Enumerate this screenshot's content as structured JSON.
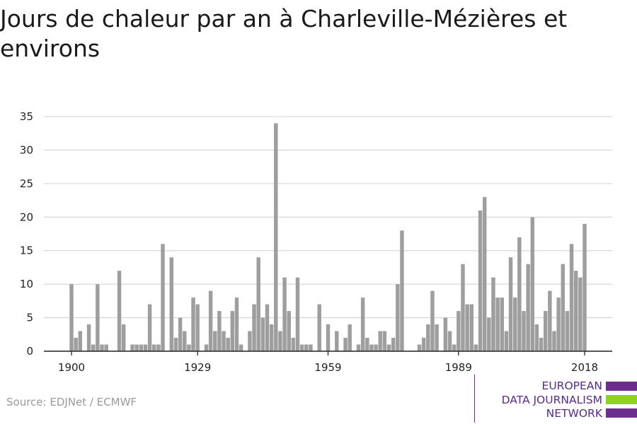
{
  "title": "Jours de chaleur par an à Charleville-Mézières et environs",
  "source": "Source: EDJNet / ECMWF",
  "logo": {
    "line1": "EUROPEAN",
    "line2": "DATA JOURNALISM",
    "line3": "NETWORK"
  },
  "colors": {
    "bar": "#9e9e9e",
    "grid": "#d9d9d9",
    "axis": "#222222",
    "logo_purple": "#6b2d8e",
    "logo_green": "#8ed41e"
  },
  "chart_data": {
    "type": "bar",
    "title": "Jours de chaleur par an à Charleville-Mézières et environs",
    "xlabel": "",
    "ylabel": "",
    "ylim": [
      0,
      35
    ],
    "yticks": [
      0,
      5,
      10,
      15,
      20,
      25,
      30,
      35
    ],
    "xticks": [
      1900,
      1929,
      1959,
      1989,
      2018
    ],
    "grid": true,
    "x": [
      1900,
      1901,
      1902,
      1903,
      1904,
      1905,
      1906,
      1907,
      1908,
      1909,
      1910,
      1911,
      1912,
      1913,
      1914,
      1915,
      1916,
      1917,
      1918,
      1919,
      1920,
      1921,
      1922,
      1923,
      1924,
      1925,
      1926,
      1927,
      1928,
      1929,
      1930,
      1931,
      1932,
      1933,
      1934,
      1935,
      1936,
      1937,
      1938,
      1939,
      1940,
      1941,
      1942,
      1943,
      1944,
      1945,
      1946,
      1947,
      1948,
      1949,
      1950,
      1951,
      1952,
      1953,
      1954,
      1955,
      1956,
      1957,
      1958,
      1959,
      1960,
      1961,
      1962,
      1963,
      1964,
      1965,
      1966,
      1967,
      1968,
      1969,
      1970,
      1971,
      1972,
      1973,
      1974,
      1975,
      1976,
      1977,
      1978,
      1979,
      1980,
      1981,
      1982,
      1983,
      1984,
      1985,
      1986,
      1987,
      1988,
      1989,
      1990,
      1991,
      1992,
      1993,
      1994,
      1995,
      1996,
      1997,
      1998,
      1999,
      2000,
      2001,
      2002,
      2003,
      2004,
      2005,
      2006,
      2007,
      2008,
      2009,
      2010,
      2011,
      2012,
      2013,
      2014,
      2015,
      2016,
      2017,
      2018
    ],
    "values": [
      10,
      2,
      3,
      0,
      4,
      1,
      10,
      1,
      1,
      0,
      0,
      12,
      4,
      0,
      1,
      1,
      1,
      1,
      7,
      1,
      1,
      16,
      0,
      14,
      2,
      5,
      3,
      1,
      8,
      7,
      0,
      1,
      9,
      3,
      6,
      3,
      2,
      6,
      8,
      1,
      0,
      3,
      7,
      14,
      5,
      7,
      4,
      34,
      3,
      11,
      6,
      2,
      11,
      1,
      1,
      1,
      0,
      7,
      0,
      4,
      0,
      3,
      0,
      2,
      4,
      0,
      1,
      8,
      2,
      1,
      1,
      3,
      3,
      1,
      2,
      10,
      18,
      0,
      0,
      0,
      1,
      2,
      4,
      9,
      4,
      0,
      5,
      3,
      1,
      6,
      13,
      7,
      7,
      1,
      21,
      23,
      5,
      11,
      8,
      8,
      3,
      14,
      8,
      17,
      6,
      13,
      20,
      4,
      2,
      6,
      9,
      3,
      8,
      13,
      6,
      16,
      12,
      11,
      19
    ]
  }
}
